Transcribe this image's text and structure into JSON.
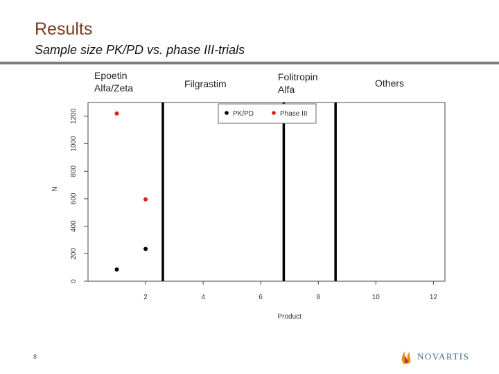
{
  "slide": {
    "title": "Results",
    "subtitle": "Sample size PK/PD vs. phase III-trials",
    "page_number": "8",
    "logo_text": "NOVARTIS"
  },
  "categories": [
    {
      "lines": [
        "Epoetin",
        "Alfa/Zeta"
      ]
    },
    {
      "lines": [
        "Filgrastim"
      ]
    },
    {
      "lines": [
        "Folitropin",
        "Alfa"
      ]
    },
    {
      "lines": [
        "Others"
      ]
    }
  ],
  "colors": {
    "title": "#7a3b22",
    "pkpd": "#000000",
    "phase3": "#e0191b",
    "divider": "#000000",
    "logo": "#3a6f87"
  },
  "chart_data": {
    "type": "scatter",
    "xlabel": "Product",
    "ylabel": "N",
    "xlim": [
      0,
      12.4
    ],
    "ylim": [
      0,
      1300
    ],
    "xticks": [
      2,
      4,
      6,
      8,
      10,
      12
    ],
    "yticks": [
      0,
      200,
      400,
      600,
      800,
      1000,
      1200
    ],
    "dividers_x": [
      2.6,
      6.8,
      8.6
    ],
    "legend": {
      "position": "top-center",
      "entries": [
        "PK/PD",
        "Phase III"
      ]
    },
    "series": [
      {
        "name": "PK/PD",
        "points": [
          {
            "x": 1,
            "y": 85
          },
          {
            "x": 2,
            "y": 235
          }
        ]
      },
      {
        "name": "Phase III",
        "points": [
          {
            "x": 1,
            "y": 1220
          },
          {
            "x": 2,
            "y": 595
          }
        ]
      }
    ]
  }
}
